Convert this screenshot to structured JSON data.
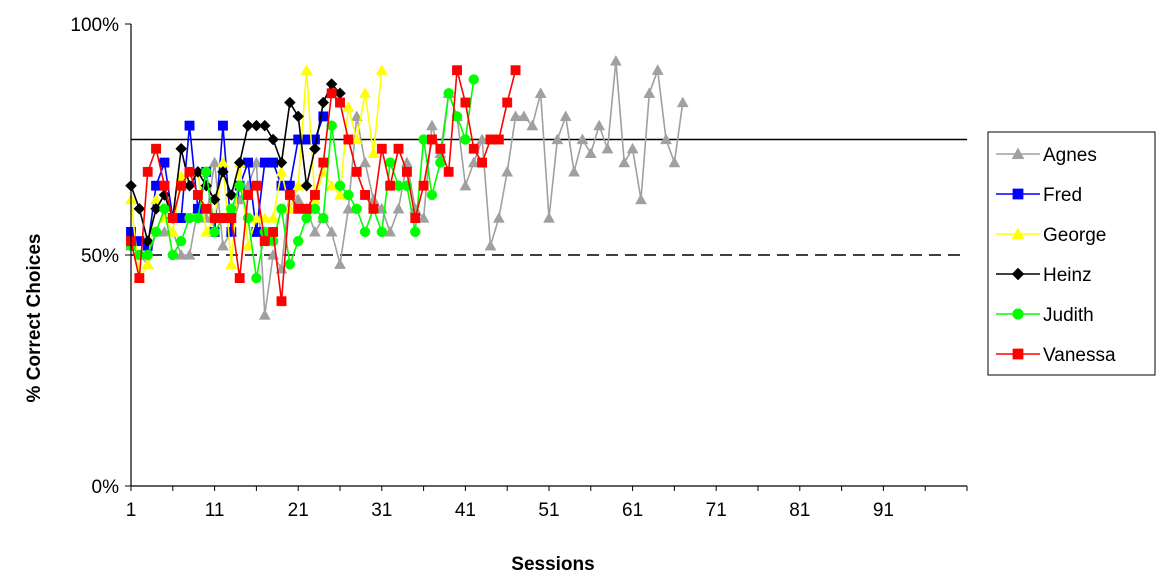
{
  "chart_data": {
    "type": "line",
    "xlabel": "Sessions",
    "ylabel": "% Correct Choices",
    "xlim": [
      1,
      101
    ],
    "ylim": [
      0,
      100
    ],
    "x_ticks": [
      1,
      11,
      21,
      31,
      41,
      51,
      61,
      71,
      81,
      91
    ],
    "x_tick_labels": [
      "1",
      "11",
      "21",
      "31",
      "41",
      "51",
      "61",
      "71",
      "81",
      "91"
    ],
    "y_ticks": [
      0,
      50,
      100
    ],
    "y_tick_labels": [
      "0%",
      "50%",
      "100%"
    ],
    "grid": false,
    "legend_position": "right",
    "reference_lines": [
      {
        "y": 75,
        "style": "solid",
        "color": "#000000"
      },
      {
        "y": 50,
        "style": "dashed",
        "color": "#000000"
      }
    ],
    "series": [
      {
        "name": "Agnes",
        "color": "#a0a0a0",
        "marker": "triangle",
        "values": [
          52,
          50,
          48,
          55,
          55,
          55,
          50,
          50,
          60,
          58,
          70,
          52,
          55,
          62,
          65,
          70,
          37,
          50,
          47,
          65,
          62,
          60,
          55,
          58,
          55,
          48,
          60,
          80,
          70,
          62,
          60,
          55,
          60,
          70,
          60,
          58,
          78,
          72,
          85,
          80,
          65,
          70,
          75,
          52,
          58,
          68,
          80,
          80,
          78,
          85,
          58,
          75,
          80,
          68,
          75,
          72,
          78,
          73,
          92,
          70,
          73,
          62,
          85,
          90,
          75,
          70,
          83
        ]
      },
      {
        "name": "Fred",
        "color": "#0000ff",
        "marker": "square",
        "values": [
          55,
          53,
          52,
          65,
          70,
          58,
          58,
          78,
          60,
          68,
          55,
          78,
          55,
          65,
          70,
          55,
          70,
          70,
          65,
          65,
          75,
          75,
          75,
          80
        ]
      },
      {
        "name": "George",
        "color": "#ffff00",
        "marker": "triangle",
        "values": [
          62,
          45,
          48,
          62,
          58,
          55,
          67,
          68,
          68,
          55,
          58,
          70,
          48,
          70,
          52,
          58,
          58,
          58,
          68,
          60,
          65,
          90,
          62,
          68,
          65,
          63,
          82,
          75,
          85,
          72,
          90
        ]
      },
      {
        "name": "Heinz",
        "color": "#000000",
        "marker": "diamond",
        "values": [
          65,
          60,
          53,
          60,
          63,
          58,
          73,
          65,
          68,
          65,
          62,
          68,
          63,
          70,
          78,
          78,
          78,
          75,
          70,
          83,
          80,
          65,
          73,
          83,
          87,
          85
        ]
      },
      {
        "name": "Judith",
        "color": "#00ff00",
        "marker": "circle",
        "values": [
          52,
          50,
          50,
          55,
          60,
          50,
          53,
          58,
          58,
          68,
          55,
          58,
          60,
          65,
          58,
          45,
          55,
          53,
          60,
          48,
          53,
          58,
          60,
          58,
          78,
          65,
          63,
          60,
          55,
          60,
          55,
          70,
          65,
          65,
          55,
          75,
          63,
          70,
          85,
          80,
          75,
          88
        ]
      },
      {
        "name": "Vanessa",
        "color": "#ff0000",
        "marker": "square",
        "values": [
          53,
          45,
          68,
          73,
          65,
          58,
          65,
          68,
          63,
          60,
          58,
          58,
          58,
          45,
          63,
          65,
          53,
          55,
          40,
          63,
          60,
          60,
          63,
          70,
          85,
          83,
          75,
          68,
          63,
          60,
          73,
          65,
          73,
          68,
          58,
          65,
          75,
          73,
          68,
          90,
          83,
          73,
          70,
          75,
          75,
          83,
          90
        ]
      }
    ]
  }
}
